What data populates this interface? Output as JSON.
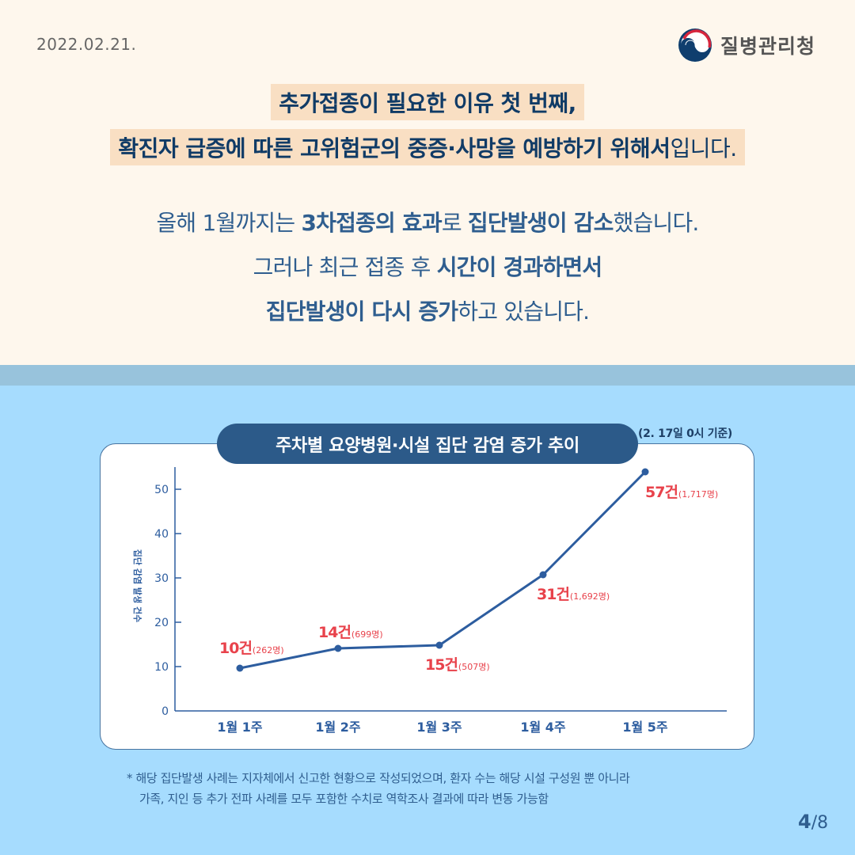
{
  "header": {
    "date": "2022.02.21.",
    "logo_text": "질병관리청",
    "logo_icon": "taegeuk-emblem-icon"
  },
  "headline": {
    "line1": "추가접종이 필요한 이유 첫 번째,",
    "line2_bold": "확진자 급증에 따른 고위험군의 중증·사망을 예방하기 위해서",
    "line2_light": "입니다."
  },
  "body": {
    "line1": [
      {
        "text": "올해 1월까지는 ",
        "bold": false
      },
      {
        "text": "3차접종의 효과",
        "bold": true
      },
      {
        "text": "로 ",
        "bold": false
      },
      {
        "text": "집단발생이 감소",
        "bold": true
      },
      {
        "text": "했습니다.",
        "bold": false
      }
    ],
    "line2": [
      {
        "text": "그러나 최근 접종 후 ",
        "bold": false
      },
      {
        "text": "시간이 경과하면서",
        "bold": true
      }
    ],
    "line3": [
      {
        "text": "집단발생이 다시 증가",
        "bold": true
      },
      {
        "text": "하고 있습니다.",
        "bold": false
      }
    ]
  },
  "chart_title": "주차별 요양병원·시설 집단 감염 증가 추이",
  "chart_basis": "(2. 17일 0시 기준)",
  "chart_data": {
    "type": "line",
    "title": "주차별 요양병원·시설 집단 감염 증가 추이",
    "subtitle": "(2. 17일 0시 기준)",
    "xlabel": "",
    "ylabel": "집단 감염 발생 건수",
    "categories": [
      "1월 1주",
      "1월 2주",
      "1월 3주",
      "1월 4주",
      "1월 5주"
    ],
    "series": [
      {
        "name": "집단 감염 발생 건수",
        "values": [
          10,
          14,
          15,
          31,
          57
        ]
      }
    ],
    "annotations": [
      {
        "category": "1월 1주",
        "count_label": "10건",
        "people_label": "(262명)",
        "people": 262
      },
      {
        "category": "1월 2주",
        "count_label": "14건",
        "people_label": "(699명)",
        "people": 699
      },
      {
        "category": "1월 3주",
        "count_label": "15건",
        "people_label": "(507명)",
        "people": 507
      },
      {
        "category": "1월 4주",
        "count_label": "31건",
        "people_label": "(1,692명)",
        "people": 1692
      },
      {
        "category": "1월 5주",
        "count_label": "57건",
        "people_label": "(1,717명)",
        "people": 1717
      }
    ],
    "yticks": [
      0,
      10,
      20,
      30,
      40,
      50
    ],
    "ylim": [
      0,
      55
    ],
    "grid": false,
    "legend": "none",
    "line_color": "#2d5d9f",
    "label_color": "#e8424b"
  },
  "footnote": {
    "line1": "* 해당 집단발생 사례는 지자체에서 신고한 현황으로 작성되었으며, 환자 수는 해당 시설 구성원 뿐 아니라",
    "line2": "가족, 지인 등 추가 전파 사례를 모두 포함한 수치로 역학조사 결과에 따라 변동 가능함"
  },
  "pagination": {
    "current": "4",
    "total": "/8"
  },
  "colors": {
    "top_bg": "#fef7ed",
    "bottom_bg": "#a6dcfe",
    "navy": "#103b66",
    "accent_red": "#e8424b",
    "pill_bg": "#2c5a89"
  }
}
